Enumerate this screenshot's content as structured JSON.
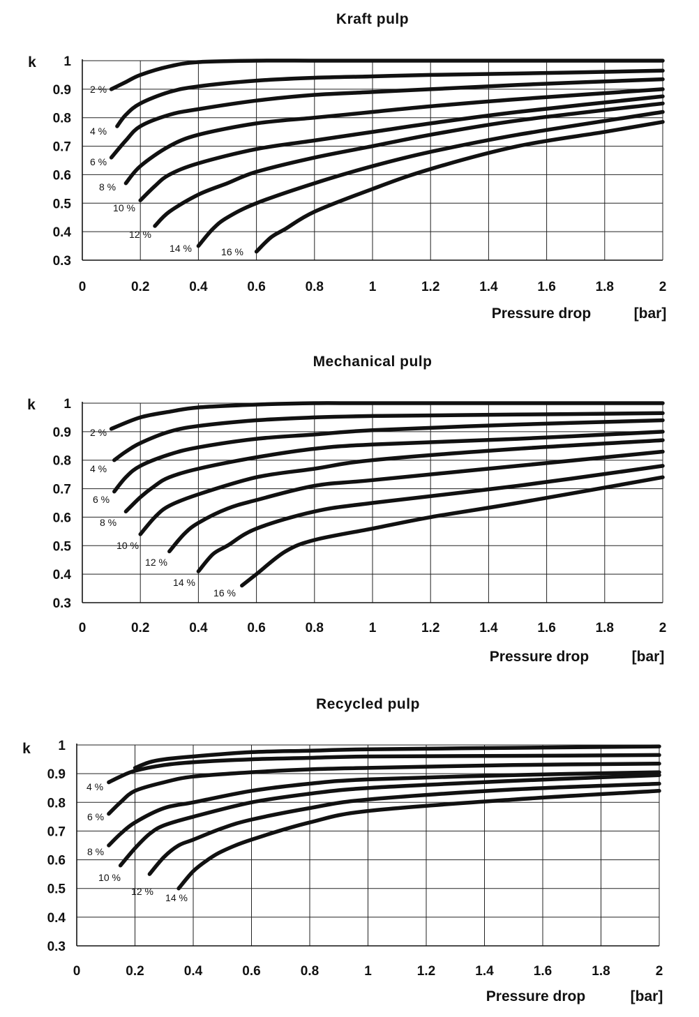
{
  "chart_data": [
    {
      "type": "line",
      "title": "Kraft pulp",
      "ylabel": "k",
      "xlabel": "Pressure drop",
      "xunit": "[bar]",
      "xlim": [
        0,
        2
      ],
      "ylim": [
        0.3,
        1
      ],
      "xticks": [
        "0",
        "0.2",
        "0.4",
        "0.6",
        "0.8",
        "1",
        "1.2",
        "1.4",
        "1.6",
        "1.8",
        "2"
      ],
      "yticks": [
        "0.3",
        "0.4",
        "0.5",
        "0.6",
        "0.7",
        "0.8",
        "0.9",
        "1"
      ],
      "grid": true,
      "series": [
        {
          "name": "2 %",
          "x": [
            0.1,
            0.15,
            0.2,
            0.3,
            0.4,
            0.6,
            0.8,
            1.0,
            2.0
          ],
          "y": [
            0.9,
            0.925,
            0.95,
            0.98,
            0.995,
            1.0,
            1.0,
            1.0,
            1.0
          ]
        },
        {
          "name": "4 %",
          "x": [
            0.12,
            0.15,
            0.2,
            0.3,
            0.4,
            0.6,
            0.8,
            1.0,
            1.2,
            1.5,
            2.0
          ],
          "y": [
            0.77,
            0.81,
            0.85,
            0.89,
            0.91,
            0.93,
            0.94,
            0.945,
            0.95,
            0.955,
            0.965
          ]
        },
        {
          "name": "6 %",
          "x": [
            0.1,
            0.15,
            0.2,
            0.3,
            0.4,
            0.6,
            0.8,
            1.0,
            1.2,
            1.5,
            2.0
          ],
          "y": [
            0.66,
            0.72,
            0.77,
            0.81,
            0.83,
            0.86,
            0.88,
            0.89,
            0.9,
            0.915,
            0.935
          ]
        },
        {
          "name": "8 %",
          "x": [
            0.15,
            0.2,
            0.3,
            0.4,
            0.6,
            0.8,
            1.0,
            1.2,
            1.5,
            2.0
          ],
          "y": [
            0.57,
            0.63,
            0.7,
            0.74,
            0.78,
            0.8,
            0.82,
            0.84,
            0.865,
            0.9
          ]
        },
        {
          "name": "10 %",
          "x": [
            0.2,
            0.25,
            0.3,
            0.4,
            0.6,
            0.8,
            1.0,
            1.2,
            1.5,
            2.0
          ],
          "y": [
            0.51,
            0.56,
            0.6,
            0.64,
            0.69,
            0.72,
            0.75,
            0.78,
            0.82,
            0.875
          ]
        },
        {
          "name": "12 %",
          "x": [
            0.25,
            0.3,
            0.4,
            0.5,
            0.6,
            0.8,
            1.0,
            1.2,
            1.5,
            2.0
          ],
          "y": [
            0.42,
            0.47,
            0.53,
            0.57,
            0.61,
            0.66,
            0.7,
            0.74,
            0.79,
            0.85
          ]
        },
        {
          "name": "14 %",
          "x": [
            0.4,
            0.45,
            0.5,
            0.6,
            0.8,
            1.0,
            1.2,
            1.5,
            2.0
          ],
          "y": [
            0.35,
            0.41,
            0.45,
            0.5,
            0.57,
            0.63,
            0.68,
            0.74,
            0.82
          ]
        },
        {
          "name": "16 %",
          "x": [
            0.6,
            0.65,
            0.7,
            0.8,
            1.0,
            1.2,
            1.5,
            1.8,
            2.0
          ],
          "y": [
            0.33,
            0.38,
            0.41,
            0.47,
            0.55,
            0.62,
            0.7,
            0.75,
            0.785
          ]
        }
      ]
    },
    {
      "type": "line",
      "title": "Mechanical pulp",
      "ylabel": "k",
      "xlabel": "Pressure drop",
      "xunit": "[bar]",
      "xlim": [
        0,
        2
      ],
      "ylim": [
        0.3,
        1
      ],
      "xticks": [
        "0",
        "0.2",
        "0.4",
        "0.6",
        "0.8",
        "1",
        "1.2",
        "1.4",
        "1.6",
        "1.8",
        "2"
      ],
      "yticks": [
        "0.3",
        "0.4",
        "0.5",
        "0.6",
        "0.7",
        "0.8",
        "0.9",
        "1"
      ],
      "grid": true,
      "series": [
        {
          "name": "2 %",
          "x": [
            0.1,
            0.2,
            0.3,
            0.4,
            0.6,
            0.8,
            1.0,
            2.0
          ],
          "y": [
            0.91,
            0.95,
            0.97,
            0.985,
            0.995,
            1.0,
            1.0,
            1.0
          ]
        },
        {
          "name": "4 %",
          "x": [
            0.11,
            0.15,
            0.2,
            0.3,
            0.4,
            0.6,
            0.8,
            1.0,
            1.5,
            2.0
          ],
          "y": [
            0.8,
            0.83,
            0.86,
            0.9,
            0.92,
            0.94,
            0.95,
            0.955,
            0.96,
            0.965
          ]
        },
        {
          "name": "6 %",
          "x": [
            0.11,
            0.15,
            0.2,
            0.3,
            0.4,
            0.6,
            0.8,
            1.0,
            1.5,
            2.0
          ],
          "y": [
            0.69,
            0.74,
            0.78,
            0.82,
            0.845,
            0.875,
            0.89,
            0.905,
            0.925,
            0.94
          ]
        },
        {
          "name": "8 %",
          "x": [
            0.15,
            0.2,
            0.25,
            0.3,
            0.4,
            0.6,
            0.8,
            1.0,
            1.5,
            2.0
          ],
          "y": [
            0.62,
            0.67,
            0.71,
            0.74,
            0.77,
            0.81,
            0.84,
            0.855,
            0.875,
            0.9
          ]
        },
        {
          "name": "10 %",
          "x": [
            0.2,
            0.25,
            0.3,
            0.4,
            0.6,
            0.8,
            1.0,
            1.5,
            2.0
          ],
          "y": [
            0.54,
            0.6,
            0.64,
            0.68,
            0.74,
            0.77,
            0.8,
            0.84,
            0.87
          ]
        },
        {
          "name": "12 %",
          "x": [
            0.3,
            0.35,
            0.4,
            0.5,
            0.6,
            0.8,
            1.0,
            1.5,
            2.0
          ],
          "y": [
            0.48,
            0.54,
            0.58,
            0.63,
            0.66,
            0.71,
            0.73,
            0.78,
            0.83
          ]
        },
        {
          "name": "14 %",
          "x": [
            0.4,
            0.45,
            0.5,
            0.6,
            0.8,
            1.0,
            1.5,
            2.0
          ],
          "y": [
            0.41,
            0.47,
            0.5,
            0.56,
            0.62,
            0.65,
            0.71,
            0.78
          ]
        },
        {
          "name": "16 %",
          "x": [
            0.55,
            0.6,
            0.7,
            0.8,
            1.0,
            1.2,
            1.5,
            2.0
          ],
          "y": [
            0.36,
            0.4,
            0.48,
            0.52,
            0.56,
            0.6,
            0.65,
            0.74
          ]
        }
      ]
    },
    {
      "type": "line",
      "title": "Recycled pulp",
      "ylabel": "k",
      "xlabel": "Pressure drop",
      "xunit": "[bar]",
      "xlim": [
        0,
        2
      ],
      "ylim": [
        0.3,
        1
      ],
      "xticks": [
        "0",
        "0.2",
        "0.4",
        "0.6",
        "0.8",
        "1",
        "1.2",
        "1.4",
        "1.6",
        "1.8",
        "2"
      ],
      "yticks": [
        "0.3",
        "0.4",
        "0.5",
        "0.6",
        "0.7",
        "0.8",
        "0.9",
        "1"
      ],
      "grid": true,
      "series": [
        {
          "name": "",
          "x": [
            0.2,
            0.25,
            0.3,
            0.4,
            0.6,
            0.8,
            1.0,
            1.5,
            2.0
          ],
          "y": [
            0.92,
            0.94,
            0.95,
            0.96,
            0.975,
            0.98,
            0.985,
            0.99,
            0.995
          ]
        },
        {
          "name": "4 %",
          "x": [
            0.11,
            0.15,
            0.2,
            0.3,
            0.4,
            0.6,
            0.8,
            1.0,
            1.5,
            2.0
          ],
          "y": [
            0.87,
            0.89,
            0.91,
            0.93,
            0.94,
            0.95,
            0.955,
            0.96,
            0.962,
            0.965
          ]
        },
        {
          "name": "6 %",
          "x": [
            0.11,
            0.15,
            0.2,
            0.3,
            0.4,
            0.6,
            0.8,
            1.0,
            1.5,
            2.0
          ],
          "y": [
            0.76,
            0.8,
            0.84,
            0.87,
            0.89,
            0.905,
            0.915,
            0.92,
            0.93,
            0.935
          ]
        },
        {
          "name": "8 %",
          "x": [
            0.11,
            0.15,
            0.2,
            0.3,
            0.4,
            0.6,
            0.8,
            1.0,
            1.5,
            2.0
          ],
          "y": [
            0.65,
            0.69,
            0.73,
            0.78,
            0.8,
            0.84,
            0.865,
            0.88,
            0.895,
            0.905
          ]
        },
        {
          "name": "10 %",
          "x": [
            0.15,
            0.2,
            0.25,
            0.3,
            0.4,
            0.6,
            0.8,
            1.0,
            1.5,
            2.0
          ],
          "y": [
            0.58,
            0.64,
            0.69,
            0.72,
            0.75,
            0.8,
            0.83,
            0.85,
            0.875,
            0.895
          ]
        },
        {
          "name": "12 %",
          "x": [
            0.25,
            0.3,
            0.35,
            0.4,
            0.5,
            0.6,
            0.8,
            1.0,
            1.5,
            2.0
          ],
          "y": [
            0.55,
            0.61,
            0.65,
            0.67,
            0.71,
            0.74,
            0.78,
            0.81,
            0.845,
            0.865
          ]
        },
        {
          "name": "14 %",
          "x": [
            0.35,
            0.4,
            0.45,
            0.5,
            0.6,
            0.8,
            1.0,
            1.5,
            2.0
          ],
          "y": [
            0.5,
            0.56,
            0.6,
            0.63,
            0.67,
            0.73,
            0.77,
            0.81,
            0.84
          ]
        }
      ]
    }
  ]
}
